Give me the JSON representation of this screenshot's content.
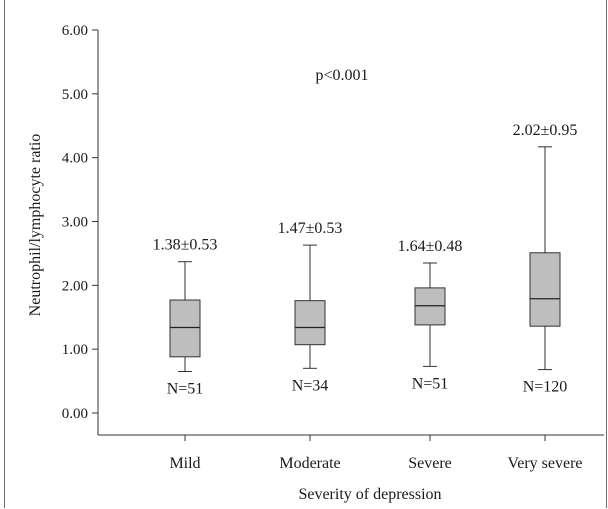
{
  "chart_data": {
    "type": "box",
    "title": "",
    "annotation": "p<0.001",
    "xlabel": "Severity of depression",
    "ylabel": "Neutrophil/lymphocyte ratio",
    "ylim": [
      0,
      6
    ],
    "yticks": [
      "0.00",
      "1.00",
      "2.00",
      "3.00",
      "4.00",
      "5.00",
      "6.00"
    ],
    "categories": [
      "Mild",
      "Moderate",
      "Severe",
      "Very severe"
    ],
    "boxes": [
      {
        "min": 0.65,
        "q1": 0.88,
        "median": 1.34,
        "q3": 1.77,
        "max": 2.37,
        "mean_sd": "1.38±0.53",
        "n": "N=51"
      },
      {
        "min": 0.7,
        "q1": 1.07,
        "median": 1.34,
        "q3": 1.76,
        "max": 2.63,
        "mean_sd": "1.47±0.53",
        "n": "N=34"
      },
      {
        "min": 0.73,
        "q1": 1.38,
        "median": 1.68,
        "q3": 1.96,
        "max": 2.35,
        "mean_sd": "1.64±0.48",
        "n": "N=51"
      },
      {
        "min": 0.68,
        "q1": 1.36,
        "median": 1.79,
        "q3": 2.51,
        "max": 4.17,
        "mean_sd": "2.02±0.95",
        "n": "N=120"
      }
    ],
    "box_color": "#bebebe",
    "grid": false
  }
}
